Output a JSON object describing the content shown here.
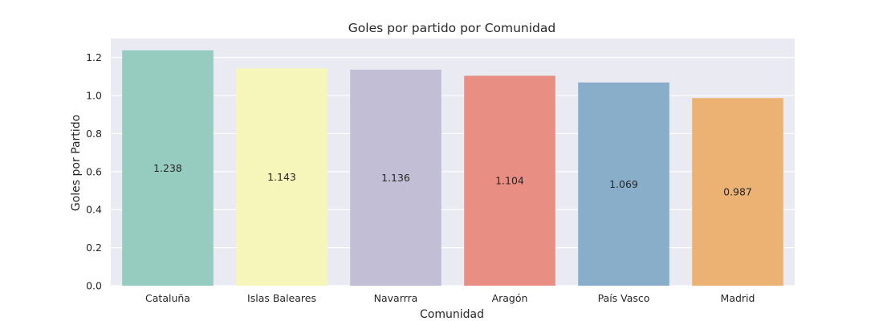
{
  "chart_data": {
    "type": "bar",
    "title": "Goles por partido por Comunidad",
    "xlabel": "Comunidad",
    "ylabel": "Goles por Partido",
    "categories": [
      "Cataluña",
      "Islas Baleares",
      "Navarrra",
      "Aragón",
      "País Vasco",
      "Madrid"
    ],
    "values": [
      1.238,
      1.143,
      1.136,
      1.104,
      1.069,
      0.987
    ],
    "value_labels": [
      "1.238",
      "1.143",
      "1.136",
      "1.104",
      "1.069",
      "0.987"
    ],
    "colors": [
      "#96cbc0",
      "#f6f6bb",
      "#c1bed6",
      "#e98e82",
      "#88aec9",
      "#ebb274"
    ],
    "ylim": [
      0,
      1.3
    ],
    "yticks": [
      0.0,
      0.2,
      0.4,
      0.6,
      0.8,
      1.0,
      1.2
    ],
    "ytick_labels": [
      "0.0",
      "0.2",
      "0.4",
      "0.6",
      "0.8",
      "1.0",
      "1.2"
    ],
    "grid": true,
    "background": "#eaeaf2",
    "grid_color": "#ffffff"
  }
}
